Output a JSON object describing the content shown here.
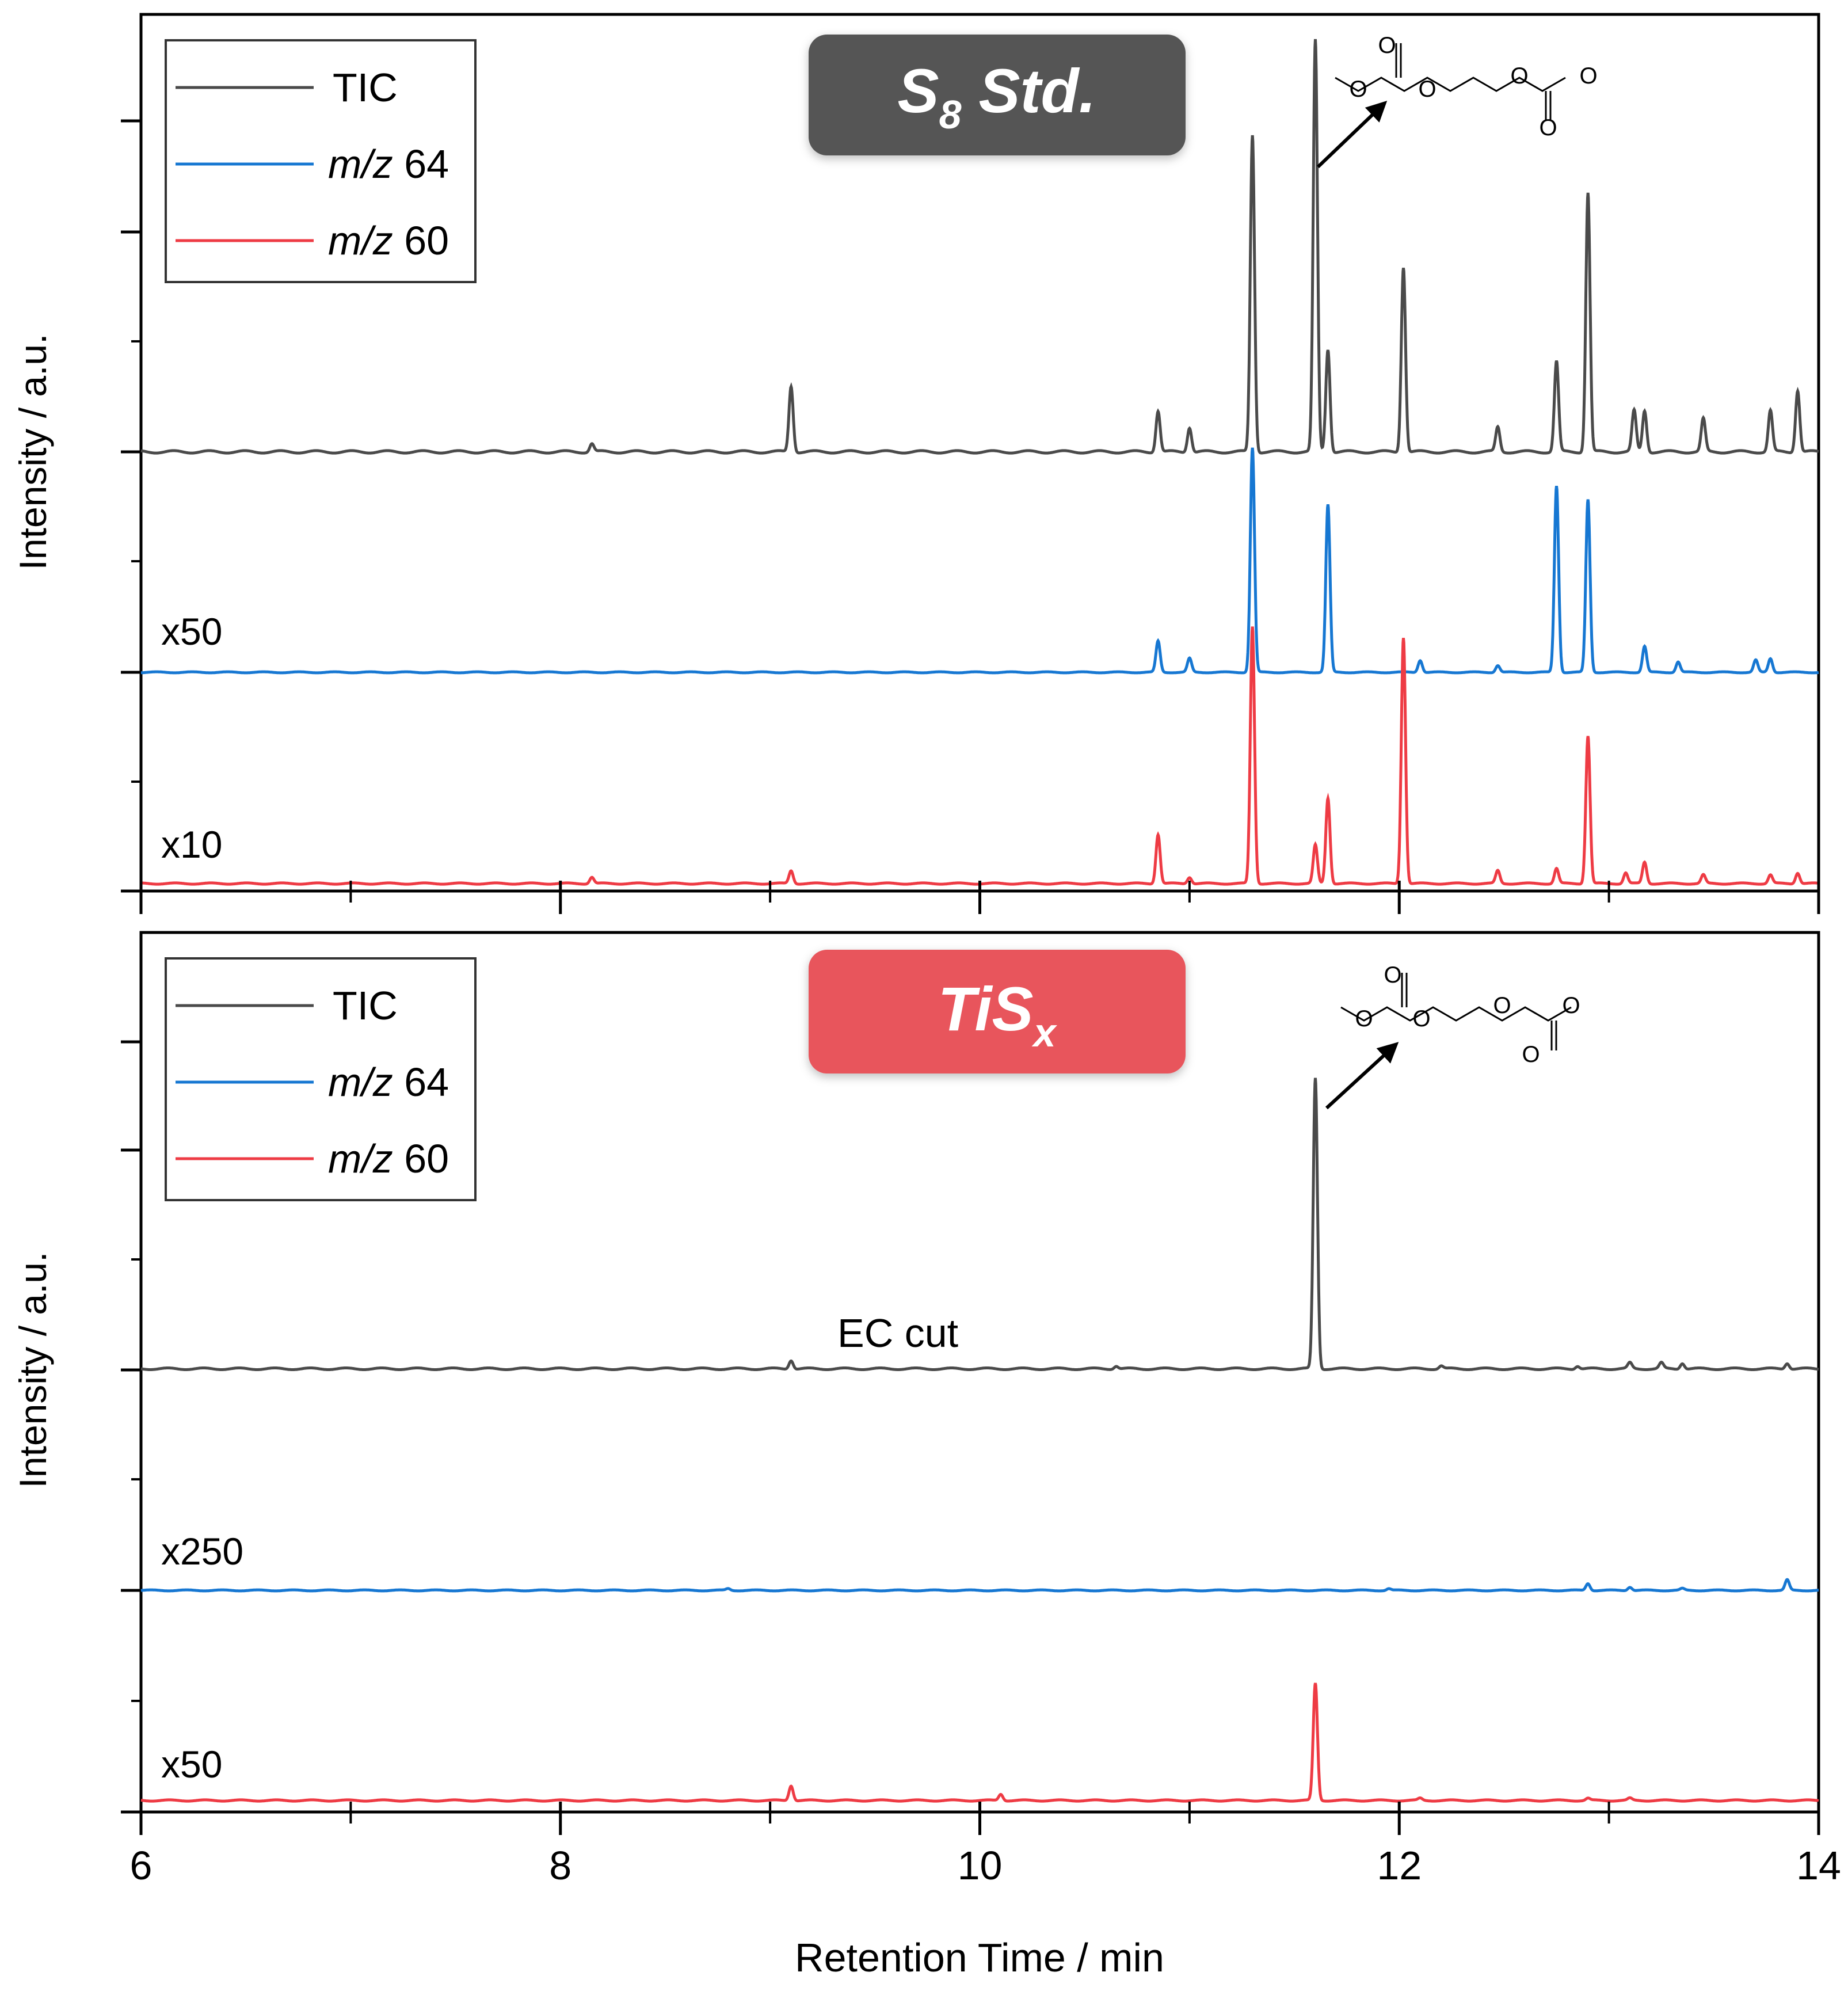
{
  "chart_data": {
    "type": "line",
    "xlabel": "Retention Time / min",
    "xlim": [
      6,
      14
    ],
    "x_ticks": [
      "6",
      "8",
      "10",
      "12",
      "14"
    ],
    "colors": {
      "TIC": "#4a4a4a",
      "mz64": "#1677d2",
      "mz60": "#ee3b44"
    },
    "panels": [
      {
        "id": "s8",
        "badge": {
          "main": "S",
          "sub": "8",
          "tail": " Std.",
          "color": "#555555"
        },
        "ylabel": "Intensity / a.u.",
        "legend": {
          "tic": "TIC",
          "mz64_italic": "m/z",
          "mz64_num": " 64",
          "mz60_italic": "m/z",
          "mz60_num": " 60"
        },
        "structure_label": "O",
        "series": [
          {
            "name": "TIC",
            "color_key": "TIC",
            "scale_label": "",
            "baseline": 0.0,
            "height": 1.0,
            "peaks": [
              [
                8.15,
                0.02
              ],
              [
                9.1,
                0.16
              ],
              [
                10.85,
                0.1
              ],
              [
                11.0,
                0.06
              ],
              [
                11.3,
                0.77
              ],
              [
                11.6,
                1.0
              ],
              [
                11.66,
                0.25
              ],
              [
                12.02,
                0.45
              ],
              [
                12.47,
                0.06
              ],
              [
                12.75,
                0.22
              ],
              [
                12.9,
                0.63
              ],
              [
                13.12,
                0.1
              ],
              [
                13.17,
                0.1
              ],
              [
                13.45,
                0.08
              ],
              [
                13.77,
                0.1
              ],
              [
                13.9,
                0.15
              ]
            ]
          },
          {
            "name": "m/z 64",
            "color_key": "mz64",
            "scale_label": "x50",
            "baseline": 0.0,
            "height": 1.0,
            "peaks": [
              [
                10.85,
                0.18
              ],
              [
                11.0,
                0.08
              ],
              [
                11.3,
                1.3
              ],
              [
                11.66,
                0.97
              ],
              [
                12.1,
                0.07
              ],
              [
                12.47,
                0.04
              ],
              [
                12.75,
                1.08
              ],
              [
                12.9,
                1.0
              ],
              [
                13.17,
                0.15
              ],
              [
                13.33,
                0.06
              ],
              [
                13.7,
                0.07
              ],
              [
                13.77,
                0.08
              ]
            ]
          },
          {
            "name": "m/z 60",
            "color_key": "mz60",
            "scale_label": "x10",
            "baseline": 0.0,
            "height": 1.0,
            "peaks": [
              [
                8.15,
                0.03
              ],
              [
                9.1,
                0.06
              ],
              [
                10.85,
                0.23
              ],
              [
                11.0,
                0.03
              ],
              [
                11.3,
                1.2
              ],
              [
                11.6,
                0.18
              ],
              [
                11.66,
                0.4
              ],
              [
                12.02,
                1.15
              ],
              [
                12.47,
                0.06
              ],
              [
                12.75,
                0.07
              ],
              [
                12.9,
                0.69
              ],
              [
                13.08,
                0.05
              ],
              [
                13.17,
                0.1
              ],
              [
                13.45,
                0.04
              ],
              [
                13.77,
                0.04
              ],
              [
                13.9,
                0.05
              ]
            ]
          }
        ]
      },
      {
        "id": "tisx",
        "badge": {
          "main": "TiS",
          "sub": "x",
          "tail": "",
          "color": "#e8555c"
        },
        "ylabel": "Intensity / a.u.",
        "legend": {
          "tic": "TIC",
          "mz64_italic": "m/z",
          "mz64_num": " 64",
          "mz60_italic": "m/z",
          "mz60_num": " 60"
        },
        "annotation": "EC cut",
        "structure_label": "O",
        "series": [
          {
            "name": "TIC",
            "color_key": "TIC",
            "scale_label": "",
            "baseline": 0.0,
            "height": 1.0,
            "peaks": [
              [
                9.1,
                0.03
              ],
              [
                10.65,
                0.01
              ],
              [
                11.6,
                1.0
              ],
              [
                12.2,
                0.01
              ],
              [
                12.85,
                0.01
              ],
              [
                13.1,
                0.02
              ],
              [
                13.25,
                0.02
              ],
              [
                13.35,
                0.02
              ],
              [
                13.85,
                0.02
              ]
            ]
          },
          {
            "name": "m/z 64",
            "color_key": "mz64",
            "scale_label": "x250",
            "baseline": 0.0,
            "height": 1.0,
            "peaks": [
              [
                8.8,
                0.01
              ],
              [
                11.95,
                0.01
              ],
              [
                12.9,
                0.04
              ],
              [
                13.1,
                0.02
              ],
              [
                13.35,
                0.01
              ],
              [
                13.85,
                0.06
              ]
            ]
          },
          {
            "name": "m/z 60",
            "color_key": "mz60",
            "scale_label": "x50",
            "baseline": 0.0,
            "height": 1.0,
            "peaks": [
              [
                9.1,
                0.07
              ],
              [
                10.1,
                0.03
              ],
              [
                11.6,
                0.55
              ],
              [
                12.1,
                0.01
              ],
              [
                12.9,
                0.01
              ],
              [
                13.1,
                0.01
              ]
            ]
          }
        ]
      }
    ]
  }
}
